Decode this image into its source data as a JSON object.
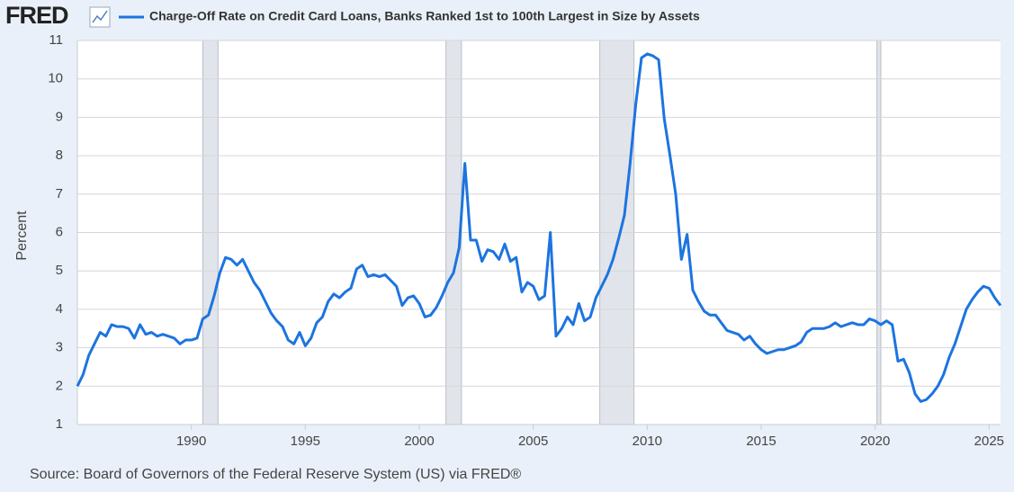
{
  "chart_data": {
    "type": "line",
    "logo": "FRED",
    "title": "Charge-Off Rate on Credit Card Loans, Banks Ranked 1st to 100th Largest in Size by Assets",
    "y_label": "Percent",
    "source": "Source: Board of Governors of the Federal Reserve System (US) via FRED®",
    "xlim": [
      1985,
      2025.5
    ],
    "xticks": [
      1990,
      1995,
      2000,
      2005,
      2010,
      2015,
      2020,
      2025
    ],
    "ylim": [
      1,
      11
    ],
    "yticks": [
      1,
      2,
      3,
      4,
      5,
      6,
      7,
      8,
      9,
      10,
      11
    ],
    "grid": true,
    "recessions": [
      [
        1990.5,
        1991.17
      ],
      [
        2001.17,
        2001.85
      ],
      [
        2007.92,
        2009.42
      ],
      [
        2020.08,
        2020.25
      ]
    ],
    "recession_color": "#e1e5eb",
    "x": [
      1985,
      1985.25,
      1985.5,
      1985.75,
      1986,
      1986.25,
      1986.5,
      1986.75,
      1987,
      1987.25,
      1987.5,
      1987.75,
      1988,
      1988.25,
      1988.5,
      1988.75,
      1989,
      1989.25,
      1989.5,
      1989.75,
      1990,
      1990.25,
      1990.5,
      1990.75,
      1991,
      1991.25,
      1991.5,
      1991.75,
      1992,
      1992.25,
      1992.5,
      1992.75,
      1993,
      1993.25,
      1993.5,
      1993.75,
      1994,
      1994.25,
      1994.5,
      1994.75,
      1995,
      1995.25,
      1995.5,
      1995.75,
      1996,
      1996.25,
      1996.5,
      1996.75,
      1997,
      1997.25,
      1997.5,
      1997.75,
      1998,
      1998.25,
      1998.5,
      1998.75,
      1999,
      1999.25,
      1999.5,
      1999.75,
      2000,
      2000.25,
      2000.5,
      2000.75,
      2001,
      2001.25,
      2001.5,
      2001.75,
      2002,
      2002.25,
      2002.5,
      2002.75,
      2003,
      2003.25,
      2003.5,
      2003.75,
      2004,
      2004.25,
      2004.5,
      2004.75,
      2005,
      2005.25,
      2005.5,
      2005.75,
      2006,
      2006.25,
      2006.5,
      2006.75,
      2007,
      2007.25,
      2007.5,
      2007.75,
      2008,
      2008.25,
      2008.5,
      2008.75,
      2009,
      2009.25,
      2009.5,
      2009.75,
      2010,
      2010.25,
      2010.5,
      2010.75,
      2011,
      2011.25,
      2011.5,
      2011.75,
      2012,
      2012.25,
      2012.5,
      2012.75,
      2013,
      2013.25,
      2013.5,
      2013.75,
      2014,
      2014.25,
      2014.5,
      2014.75,
      2015,
      2015.25,
      2015.5,
      2015.75,
      2016,
      2016.25,
      2016.5,
      2016.75,
      2017,
      2017.25,
      2017.5,
      2017.75,
      2018,
      2018.25,
      2018.5,
      2018.75,
      2019,
      2019.25,
      2019.5,
      2019.75,
      2020,
      2020.25,
      2020.5,
      2020.75,
      2021,
      2021.25,
      2021.5,
      2021.75,
      2022,
      2022.25,
      2022.5,
      2022.75,
      2023,
      2023.25,
      2023.5,
      2023.75,
      2024,
      2024.25,
      2024.5,
      2024.75,
      2025,
      2025.25,
      2025.5
    ],
    "series": [
      {
        "name": "Charge-Off Rate on Credit Card Loans, Banks Ranked 1st to 100th Largest in Size by Assets",
        "color": "#1c74e0",
        "values": [
          2.0,
          2.3,
          2.8,
          3.1,
          3.4,
          3.3,
          3.6,
          3.55,
          3.55,
          3.5,
          3.25,
          3.6,
          3.35,
          3.4,
          3.3,
          3.35,
          3.3,
          3.25,
          3.1,
          3.2,
          3.2,
          3.25,
          3.75,
          3.85,
          4.35,
          4.95,
          5.35,
          5.3,
          5.15,
          5.3,
          5.0,
          4.7,
          4.5,
          4.2,
          3.9,
          3.7,
          3.55,
          3.2,
          3.1,
          3.4,
          3.05,
          3.25,
          3.65,
          3.8,
          4.2,
          4.4,
          4.3,
          4.45,
          4.55,
          5.05,
          5.15,
          4.85,
          4.9,
          4.85,
          4.9,
          4.75,
          4.6,
          4.1,
          4.3,
          4.35,
          4.15,
          3.8,
          3.85,
          4.05,
          4.35,
          4.7,
          4.95,
          5.6,
          7.8,
          5.8,
          5.8,
          5.25,
          5.55,
          5.5,
          5.3,
          5.7,
          5.25,
          5.35,
          4.45,
          4.7,
          4.6,
          4.25,
          4.35,
          6.0,
          3.3,
          3.5,
          3.8,
          3.6,
          4.15,
          3.7,
          3.8,
          4.3,
          4.6,
          4.9,
          5.3,
          5.85,
          6.45,
          7.8,
          9.35,
          10.55,
          10.65,
          10.6,
          10.5,
          8.95,
          8.0,
          7.0,
          5.3,
          5.95,
          4.5,
          4.2,
          3.95,
          3.85,
          3.85,
          3.65,
          3.45,
          3.4,
          3.35,
          3.2,
          3.3,
          3.1,
          2.95,
          2.85,
          2.9,
          2.95,
          2.95,
          3.0,
          3.05,
          3.15,
          3.4,
          3.5,
          3.5,
          3.5,
          3.55,
          3.65,
          3.55,
          3.6,
          3.65,
          3.6,
          3.6,
          3.75,
          3.7,
          3.6,
          3.7,
          3.6,
          2.65,
          2.7,
          2.35,
          1.8,
          1.6,
          1.65,
          1.8,
          2.0,
          2.3,
          2.75,
          3.1,
          3.55,
          4.0,
          4.25,
          4.45,
          4.6,
          4.55,
          4.3,
          4.1
        ]
      }
    ]
  }
}
